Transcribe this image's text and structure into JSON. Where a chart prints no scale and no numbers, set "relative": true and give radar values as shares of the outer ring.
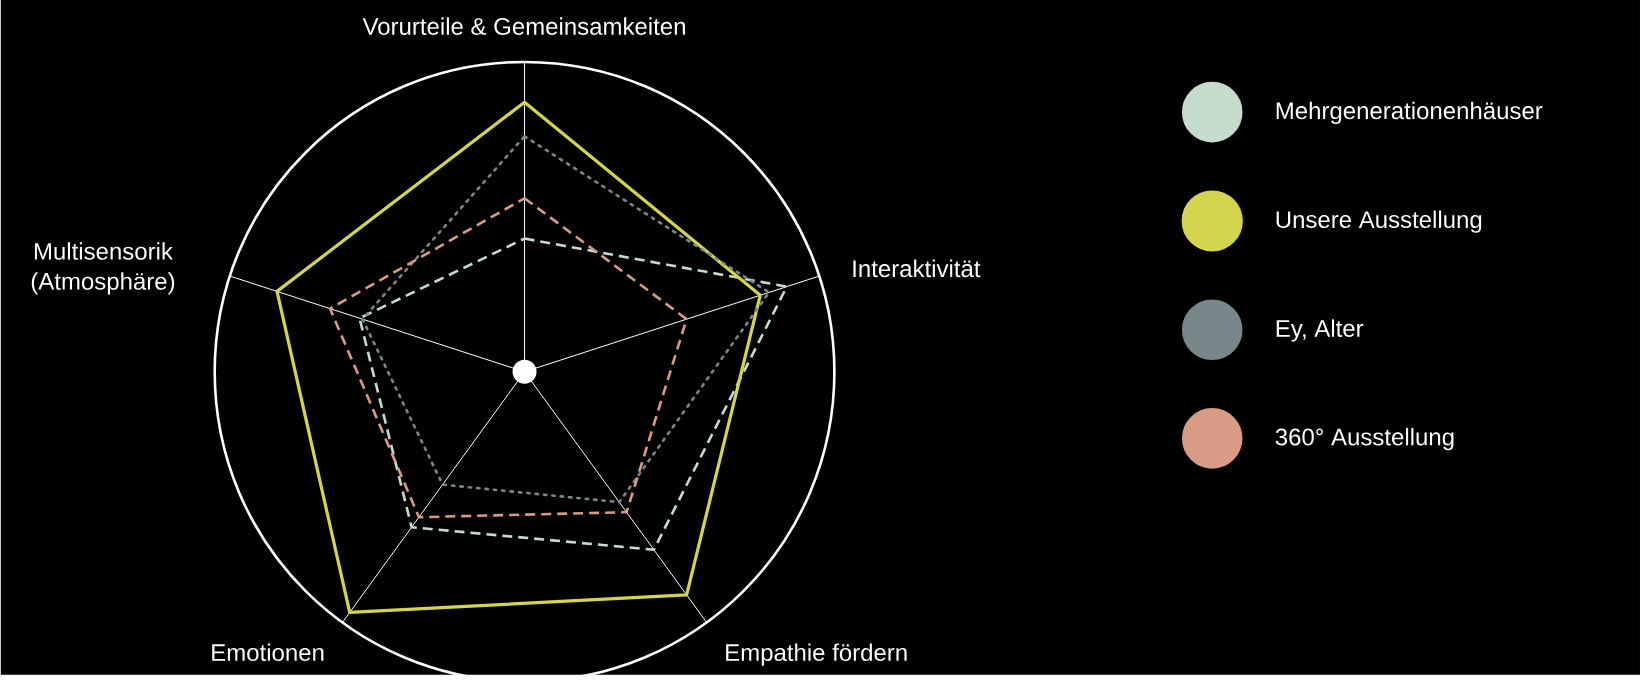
{
  "chart_data": {
    "type": "radar",
    "relative": true,
    "grid": true,
    "legend": "right",
    "categories": [
      "Vorurteile & Gemeinsamkeiten",
      "Interaktivität",
      "Empathie fördern",
      "Emotionen",
      "Multisensorik (Atmosphäre)"
    ],
    "series": [
      {
        "name": "Mehrgenerationenhäuser",
        "color": "#c5dccc",
        "line_style": "dashed",
        "values": [
          0.43,
          0.89,
          0.71,
          0.62,
          0.56
        ]
      },
      {
        "name": "Unsere Ausstellung",
        "color": "#d4d44f",
        "line_style": "solid",
        "values": [
          0.87,
          0.8,
          0.89,
          0.96,
          0.84
        ]
      },
      {
        "name": "Ey, Alter",
        "color": "#78878a",
        "line_style": "dotted",
        "values": [
          0.76,
          0.83,
          0.52,
          0.45,
          0.55
        ]
      },
      {
        "name": "360° Ausstellung",
        "color": "#d99a86",
        "line_style": "dashed",
        "values": [
          0.56,
          0.55,
          0.56,
          0.58,
          0.66
        ]
      }
    ]
  }
}
